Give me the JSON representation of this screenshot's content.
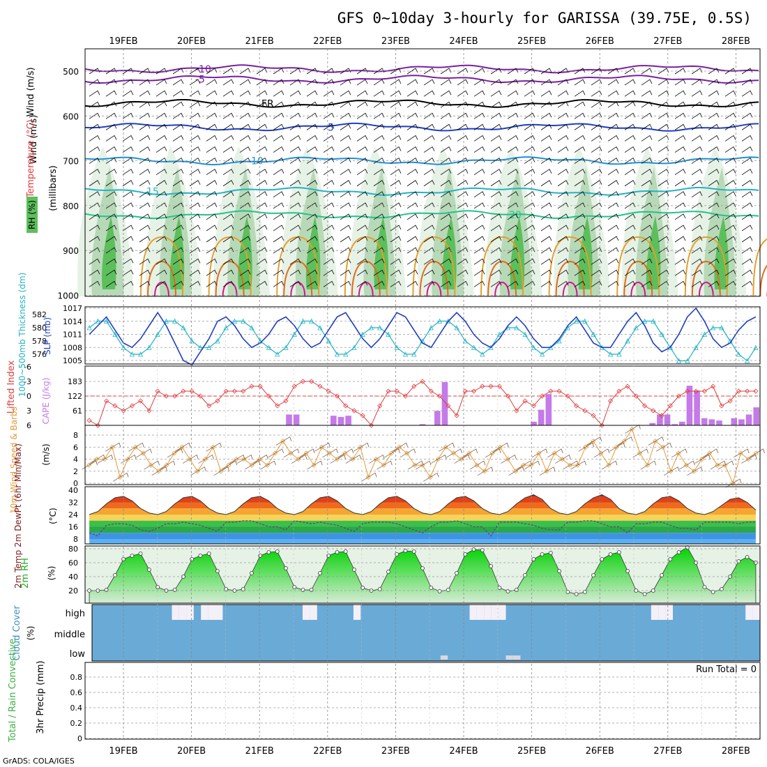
{
  "title": "GFS 0~10day 3-hourly for GARISSA (39.75E, 0.5S)",
  "footer": "GrADS: COLA/IGES",
  "dates": [
    "19FEB",
    "20FEB",
    "21FEB",
    "22FEB",
    "23FEB",
    "24FEB",
    "25FEB",
    "26FEB",
    "27FEB",
    "28FEB"
  ],
  "colors": {
    "temp_contour": "#7a1fa2",
    "rh_light": "#e6f2e6",
    "rh_mid": "#b8d9b8",
    "rh_dark": "#5cbf5c",
    "thickness": "#22b3c2",
    "slp": "#1f3ec0",
    "lifted_index": "#e03c3c",
    "cape": "#c47ae8",
    "wind": "#e39a3c",
    "barb": "#6b4423",
    "cloud": "#6aaad6",
    "precip": "#3cb043"
  },
  "chart_data": [
    {
      "type": "heatmap",
      "ylabel": "(millibars)",
      "side_labels": [
        "RH (%)",
        "Temperature (°C)",
        "Wind (m/s)"
      ],
      "yticks": [
        500,
        600,
        700,
        800,
        900,
        1000
      ],
      "contour_labels": [
        "-10",
        "-5",
        "FR",
        "5",
        "10",
        "15",
        "20"
      ]
    },
    {
      "type": "line",
      "left_label": "1000~500mb Thickness (dm)",
      "right_label": "SLP (mb)",
      "left_ticks": [
        576,
        578,
        580,
        582
      ],
      "right_ticks": [
        1005,
        1008,
        1011,
        1014,
        1017
      ],
      "series": [
        {
          "name": "SLP (mb)",
          "values": [
            1011,
            1013,
            1015,
            1012,
            1009,
            1008,
            1010,
            1013,
            1016,
            1013,
            1009,
            1005,
            1004,
            1007,
            1010,
            1014,
            1015,
            1013,
            1010,
            1008,
            1009,
            1011,
            1014,
            1015,
            1013,
            1010,
            1008,
            1009,
            1012,
            1015,
            1016,
            1013,
            1010,
            1008,
            1010,
            1013,
            1016,
            1015,
            1012,
            1009,
            1008,
            1011,
            1014,
            1016,
            1014,
            1011,
            1009,
            1008,
            1010,
            1013,
            1015,
            1013,
            1010,
            1008,
            1008,
            1010,
            1013,
            1015,
            1012,
            1009,
            1008,
            1008,
            1011,
            1014,
            1016,
            1013,
            1009,
            1007,
            1008,
            1011,
            1015,
            1017,
            1014,
            1010,
            1008,
            1009,
            1012,
            1014,
            1015
          ]
        },
        {
          "name": "1000~500mb Thickness (dm)",
          "values": [
            580,
            581,
            581,
            579,
            577,
            576,
            576,
            577,
            579,
            581,
            581,
            580,
            578,
            577,
            577,
            578,
            580,
            581,
            581,
            580,
            578,
            577,
            576,
            577,
            579,
            581,
            581,
            580,
            578,
            576,
            576,
            577,
            579,
            580,
            580,
            579,
            577,
            576,
            576,
            578,
            580,
            581,
            581,
            580,
            578,
            577,
            576,
            577,
            579,
            580,
            580,
            579,
            577,
            576,
            577,
            578,
            580,
            581,
            581,
            579,
            577,
            576,
            576,
            578,
            580,
            581,
            581,
            579,
            577,
            575,
            575,
            577,
            579,
            580,
            580,
            578,
            576,
            575,
            577
          ]
        }
      ]
    },
    {
      "type": "bar",
      "left_label": "Lifted Index",
      "right_label": "CAPE (J/kg)",
      "li_ticks": [
        "-6",
        "-3",
        "0",
        "3",
        "6"
      ],
      "cape_ticks": [
        61,
        122,
        183
      ],
      "series": [
        {
          "name": "Lifted Index",
          "values": [
            5,
            6,
            1,
            2,
            3,
            2,
            1,
            3,
            -1,
            0,
            0,
            -1,
            -1,
            0,
            2,
            1,
            -1,
            -1,
            -1,
            -2,
            -2,
            0,
            2,
            1,
            -2,
            -3,
            -3,
            -2,
            -1,
            0,
            2,
            3,
            4,
            6,
            2,
            -1,
            -1,
            0,
            -2,
            -3,
            -1,
            0,
            2,
            4,
            -1,
            -1,
            -2,
            -2,
            -2,
            0,
            3,
            1,
            2,
            0,
            -1,
            -1,
            0,
            2,
            3,
            4,
            6,
            1,
            -1,
            -2,
            0,
            2,
            3,
            4,
            2,
            0,
            -1,
            -1,
            -1,
            -2,
            2,
            1,
            -1,
            -1,
            -1
          ]
        },
        {
          "name": "CAPE (J/kg)",
          "values": [
            0,
            0,
            0,
            0,
            0,
            0,
            0,
            0,
            0,
            0,
            0,
            0,
            0,
            0,
            0,
            0,
            0,
            0,
            0,
            0,
            0,
            0,
            0,
            0,
            0,
            0,
            0,
            45,
            45,
            0,
            0,
            0,
            0,
            40,
            35,
            40,
            0,
            0,
            0,
            0,
            0,
            0,
            0,
            0,
            0,
            5,
            0,
            60,
            180,
            0,
            0,
            0,
            0,
            0,
            0,
            0,
            0,
            0,
            0,
            0,
            15,
            65,
            130,
            0,
            0,
            0,
            0,
            0,
            0,
            0,
            0,
            0,
            0,
            0,
            0,
            0,
            10,
            45,
            45,
            5,
            15,
            165,
            145,
            30,
            25,
            20,
            0,
            30,
            25,
            45,
            75
          ]
        }
      ]
    },
    {
      "type": "line",
      "left_label": "10m Wind Speed & Barbs",
      "ylabel": "(m/s)",
      "yticks": [
        0,
        2,
        4,
        6,
        8
      ],
      "series": [
        {
          "name": "10m Wind Speed",
          "values": [
            3,
            4,
            4,
            6,
            1,
            4,
            6,
            5,
            3,
            2,
            3,
            5,
            6,
            4,
            2,
            4,
            6,
            2,
            3,
            4,
            4,
            3,
            4,
            3,
            5,
            7,
            5,
            4,
            5,
            3,
            6,
            5,
            4,
            5,
            4,
            6,
            1,
            4,
            3,
            5,
            6,
            5,
            3,
            3,
            1,
            4,
            6,
            5,
            4,
            5,
            3,
            2,
            5,
            6,
            4,
            2,
            3,
            3,
            5,
            2,
            5,
            4,
            3,
            3,
            6,
            7,
            5,
            3,
            6,
            7,
            9,
            5,
            3,
            7,
            6,
            2,
            5,
            3,
            2,
            4,
            5,
            3,
            3,
            0,
            5,
            4,
            5
          ]
        }
      ]
    },
    {
      "type": "area",
      "left_label": "2m Temp 2m DewPt (6hr Min/Max)",
      "ylabel": "(°C)",
      "yticks": [
        8,
        16,
        24,
        32,
        40
      ],
      "series": [
        {
          "name": "2m Temp",
          "values": [
            24,
            26,
            31,
            35,
            36,
            33,
            28,
            25,
            24,
            26,
            31,
            35,
            36,
            33,
            28,
            25,
            24,
            26,
            31,
            35,
            36,
            33,
            28,
            25,
            24,
            26,
            31,
            35,
            36,
            33,
            28,
            25,
            24,
            26,
            31,
            35,
            36,
            33,
            28,
            25,
            24,
            26,
            31,
            35,
            36,
            33,
            28,
            25,
            24,
            26,
            31,
            35,
            37,
            34,
            28,
            25,
            24,
            26,
            31,
            35,
            37,
            34,
            28,
            25,
            24,
            26,
            31,
            35,
            36,
            33,
            28,
            25,
            24,
            26,
            30,
            34,
            35,
            32,
            27
          ]
        },
        {
          "name": "2m DewPt",
          "values": [
            12,
            10,
            17,
            18,
            18,
            17,
            14,
            13,
            15,
            18,
            18,
            19,
            18,
            17,
            15,
            13,
            19,
            19,
            20,
            20,
            18,
            16,
            16,
            14,
            20,
            19,
            18,
            19,
            18,
            17,
            15,
            13,
            18,
            19,
            19,
            19,
            18,
            16,
            14,
            12,
            16,
            19,
            19,
            20,
            18,
            16,
            16,
            10,
            19,
            19,
            19,
            18,
            17,
            15,
            14,
            14,
            19,
            19,
            20,
            20,
            18,
            16,
            16,
            12,
            18,
            18,
            19,
            19,
            17,
            15,
            15,
            14,
            19,
            19,
            19,
            19,
            18,
            19,
            19
          ]
        }
      ]
    },
    {
      "type": "area",
      "left_label": "2m RH",
      "ylabel": "(%)",
      "yticks": [
        20,
        40,
        60,
        80
      ],
      "series": [
        {
          "name": "2m RH",
          "values": [
            20,
            20,
            21,
            42,
            65,
            70,
            73,
            50,
            25,
            20,
            21,
            40,
            65,
            70,
            73,
            48,
            22,
            20,
            22,
            45,
            70,
            75,
            76,
            52,
            25,
            21,
            21,
            45,
            70,
            75,
            76,
            50,
            24,
            20,
            22,
            47,
            72,
            77,
            76,
            52,
            24,
            19,
            21,
            45,
            72,
            79,
            78,
            55,
            24,
            19,
            21,
            42,
            65,
            72,
            74,
            48,
            18,
            15,
            18,
            42,
            65,
            72,
            75,
            48,
            20,
            15,
            20,
            42,
            65,
            75,
            82,
            60,
            25,
            18,
            22,
            40,
            62,
            68,
            60
          ]
        }
      ]
    },
    {
      "type": "bar",
      "left_label": "Cloud Cover",
      "ylabel": "(%)",
      "yticks": [
        "high",
        "middle",
        "low"
      ],
      "series": [
        {
          "name": "high",
          "values": [
            0,
            0,
            0,
            0,
            0,
            0,
            0,
            0,
            0,
            0,
            0,
            1,
            1,
            1,
            0,
            1,
            1,
            1,
            0,
            0,
            0,
            0,
            0,
            0,
            0,
            0,
            0,
            0,
            0,
            1,
            1,
            0,
            0,
            0,
            0,
            0,
            1,
            0,
            0,
            0,
            0,
            0,
            0,
            0,
            0,
            0,
            0,
            0,
            0,
            0,
            0,
            0,
            1,
            1,
            1,
            1,
            1,
            0,
            0,
            0,
            0,
            0,
            0,
            0,
            0,
            0,
            0,
            0,
            0,
            0,
            0,
            0,
            0,
            0,
            0,
            0,
            0,
            1,
            1,
            1,
            0,
            0,
            0,
            0,
            0,
            0,
            0,
            0,
            0,
            0,
            1,
            1
          ]
        },
        {
          "name": "low",
          "values": [
            0,
            0,
            0,
            0,
            0,
            0,
            0,
            0,
            0,
            0,
            0,
            0,
            0,
            0,
            0,
            0,
            0,
            0,
            0,
            0,
            0,
            0,
            0,
            0,
            0,
            0,
            0,
            0,
            0,
            0,
            0,
            0,
            0,
            0,
            0,
            0,
            0,
            0,
            0,
            0,
            0,
            0,
            0,
            0,
            0,
            0,
            0,
            0,
            1,
            0,
            0,
            0,
            0,
            0,
            0,
            0,
            0,
            1,
            1,
            0,
            0,
            0,
            0,
            0,
            0,
            0,
            0,
            0,
            0,
            0,
            0,
            0,
            0,
            0,
            0,
            0,
            0,
            0,
            0,
            0,
            0,
            0,
            0,
            0,
            0,
            0,
            0,
            0,
            0,
            0,
            0,
            0
          ]
        }
      ]
    },
    {
      "type": "bar",
      "left_label": "Total / Rain Convective",
      "ylabel": "3hr Precip (mm)",
      "yticks": [
        "0",
        "0.2",
        "0.4",
        "0.6",
        "0.8"
      ],
      "run_total": "Run Total = 0",
      "series": [
        {
          "name": "Total",
          "values": [
            0,
            0,
            0,
            0,
            0,
            0,
            0,
            0,
            0,
            0,
            0,
            0,
            0,
            0,
            0,
            0,
            0,
            0,
            0,
            0,
            0,
            0,
            0,
            0,
            0,
            0,
            0,
            0,
            0,
            0,
            0,
            0,
            0,
            0,
            0,
            0,
            0,
            0,
            0,
            0,
            0,
            0,
            0,
            0,
            0,
            0,
            0,
            0,
            0,
            0,
            0,
            0,
            0,
            0,
            0,
            0,
            0,
            0,
            0,
            0,
            0,
            0,
            0,
            0,
            0,
            0,
            0,
            0,
            0,
            0,
            0,
            0,
            0,
            0,
            0,
            0,
            0,
            0,
            0
          ]
        }
      ]
    }
  ]
}
